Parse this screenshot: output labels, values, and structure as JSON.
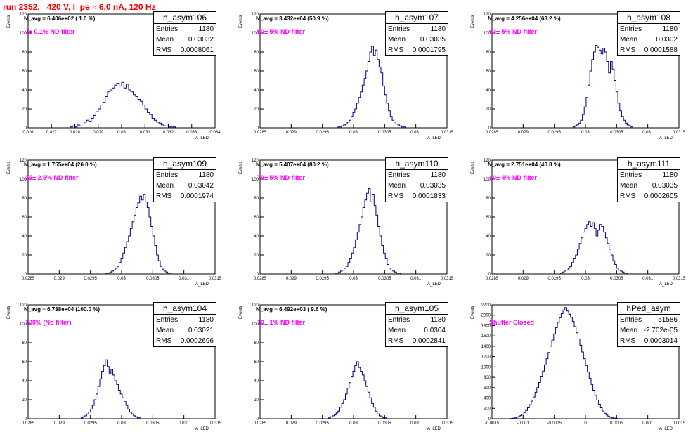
{
  "title": "run 2352,   420 V, I_pe ≈ 6.0 nA, 120 Hz",
  "chart_data": [
    {
      "type": "bar",
      "name": "h_asym106",
      "entries": "1180",
      "mean": "0.03032",
      "rms": "0.0008061",
      "navg_text": "N_avg = 6.406e+02 ( 1.0 %)",
      "filter_text": "1± 0.1% ND filter",
      "xlabel": "A_LED",
      "ylabel": "Events",
      "xlim": [
        0.026,
        0.034
      ],
      "ylim": [
        0,
        120
      ],
      "xticks": [
        0.026,
        0.027,
        0.028,
        0.029,
        0.03,
        0.031,
        0.032,
        0.033,
        0.034
      ],
      "xtick_labels": [
        "0.026",
        "0.027",
        "0.028",
        "0.029",
        "0.03",
        "0.031",
        "0.032",
        "0.033",
        "0.034"
      ],
      "yticks": [
        0,
        20,
        40,
        60,
        80,
        100,
        120
      ],
      "bin_low": 0.0278,
      "bin_width": 0.0001,
      "values": [
        1,
        2,
        1,
        3,
        2,
        4,
        6,
        8,
        7,
        10,
        13,
        17,
        20,
        24,
        27,
        33,
        38,
        40,
        42,
        45,
        47,
        44,
        48,
        42,
        46,
        40,
        38,
        35,
        33,
        30,
        28,
        24,
        20,
        16,
        14,
        10,
        8,
        6,
        5,
        3,
        2,
        2,
        1,
        1,
        1
      ]
    },
    {
      "type": "bar",
      "name": "h_asym107",
      "entries": "1180",
      "mean": "0.03035",
      "rms": "0.0001795",
      "navg_text": "N_avg = 3.432e+04 (50.9 %)",
      "filter_text": "50± 5% ND filter",
      "xlabel": "A_LED",
      "ylabel": "Events",
      "xlim": [
        0.0285,
        0.0315
      ],
      "ylim": [
        0,
        120
      ],
      "xticks": [
        0.0285,
        0.029,
        0.0295,
        0.03,
        0.0305,
        0.031,
        0.0315
      ],
      "xtick_labels": [
        "0.0285",
        "0.029",
        "0.0295",
        "0.03",
        "0.0305",
        "0.031",
        "0.0315"
      ],
      "yticks": [
        0,
        20,
        40,
        60,
        80,
        100,
        120
      ],
      "bin_low": 0.02975,
      "bin_width": 3e-05,
      "values": [
        1,
        1,
        2,
        3,
        4,
        6,
        8,
        12,
        16,
        20,
        26,
        32,
        38,
        45,
        52,
        60,
        70,
        80,
        86,
        76,
        82,
        72,
        64,
        58,
        44,
        35,
        26,
        18,
        12,
        8,
        6,
        4,
        3,
        2,
        1,
        1
      ]
    },
    {
      "type": "bar",
      "name": "h_asym108",
      "entries": "1180",
      "mean": "0.0302",
      "rms": "0.0001588",
      "navg_text": "N_avg = 4.256e+04 (63.2 %)",
      "filter_text": "63± 5% ND filter",
      "xlabel": "A_LED",
      "ylabel": "Events",
      "xlim": [
        0.0285,
        0.0315
      ],
      "ylim": [
        0,
        120
      ],
      "xticks": [
        0.0285,
        0.029,
        0.0295,
        0.03,
        0.0305,
        0.031,
        0.0315
      ],
      "xtick_labels": [
        "0.0285",
        "0.029",
        "0.0295",
        "0.03",
        "0.0305",
        "0.031",
        "0.0315"
      ],
      "yticks": [
        0,
        20,
        40,
        60,
        80,
        100,
        120
      ],
      "bin_low": 0.0298,
      "bin_width": 3e-05,
      "values": [
        1,
        2,
        3,
        5,
        8,
        14,
        22,
        32,
        45,
        60,
        72,
        80,
        87,
        85,
        82,
        78,
        84,
        80,
        70,
        58,
        70,
        62,
        50,
        38,
        26,
        18,
        12,
        8,
        5,
        3,
        2,
        1
      ]
    },
    {
      "type": "bar",
      "name": "h_asym109",
      "entries": "1180",
      "mean": "0.03042",
      "rms": "0.0001974",
      "navg_text": "N_avg = 1.755e+04 (26.0 %)",
      "filter_text": "25± 2.5% ND filter",
      "xlabel": "A_LED",
      "ylabel": "Events",
      "xlim": [
        0.0285,
        0.0315
      ],
      "ylim": [
        0,
        120
      ],
      "xticks": [
        0.0285,
        0.029,
        0.0295,
        0.03,
        0.0305,
        0.031,
        0.0315
      ],
      "xtick_labels": [
        "0.0285",
        "0.029",
        "0.0295",
        "0.03",
        "0.0305",
        "0.031",
        "0.0315"
      ],
      "yticks": [
        0,
        20,
        40,
        60,
        80,
        100,
        120
      ],
      "bin_low": 0.02975,
      "bin_width": 3e-05,
      "values": [
        1,
        1,
        2,
        3,
        4,
        6,
        8,
        12,
        16,
        22,
        28,
        34,
        40,
        48,
        55,
        62,
        70,
        75,
        82,
        78,
        84,
        76,
        70,
        60,
        50,
        40,
        30,
        20,
        14,
        8,
        5,
        3,
        2,
        1,
        1
      ]
    },
    {
      "type": "bar",
      "name": "h_asym110",
      "entries": "1180",
      "mean": "0.03035",
      "rms": "0.0001833",
      "navg_text": "N_avg = 5.407e+04 (80.2 %)",
      "filter_text": "79± 5% ND filter",
      "xlabel": "A_LED",
      "ylabel": "Events",
      "xlim": [
        0.0285,
        0.0315
      ],
      "ylim": [
        0,
        120
      ],
      "xticks": [
        0.0285,
        0.029,
        0.0295,
        0.03,
        0.0305,
        0.031,
        0.0315
      ],
      "xtick_labels": [
        "0.0285",
        "0.029",
        "0.0295",
        "0.03",
        "0.0305",
        "0.031",
        "0.0315"
      ],
      "yticks": [
        0,
        20,
        40,
        60,
        80,
        100,
        120
      ],
      "bin_low": 0.0297,
      "bin_width": 3e-05,
      "values": [
        1,
        1,
        2,
        3,
        4,
        6,
        8,
        12,
        16,
        22,
        28,
        36,
        44,
        52,
        60,
        70,
        78,
        85,
        90,
        76,
        84,
        72,
        62,
        50,
        40,
        30,
        22,
        16,
        10,
        6,
        4,
        3,
        2,
        1,
        1
      ]
    },
    {
      "type": "bar",
      "name": "h_asym111",
      "entries": "1180",
      "mean": "0.03035",
      "rms": "0.0002605",
      "navg_text": "N_avg = 2.751e+04 (40.8 %)",
      "filter_text": "40± 4% ND filter",
      "xlabel": "A_LED",
      "ylabel": "Events",
      "xlim": [
        0.0285,
        0.0315
      ],
      "ylim": [
        0,
        120
      ],
      "xticks": [
        0.0285,
        0.029,
        0.0295,
        0.03,
        0.0305,
        0.031,
        0.0315
      ],
      "xtick_labels": [
        "0.0285",
        "0.029",
        "0.0295",
        "0.03",
        "0.0305",
        "0.031",
        "0.0315"
      ],
      "yticks": [
        0,
        20,
        40,
        60,
        80,
        100,
        120
      ],
      "bin_low": 0.0296,
      "bin_width": 3e-05,
      "values": [
        1,
        2,
        3,
        4,
        6,
        8,
        12,
        16,
        20,
        26,
        32,
        38,
        44,
        48,
        52,
        55,
        50,
        54,
        48,
        40,
        46,
        52,
        50,
        44,
        38,
        32,
        26,
        20,
        14,
        10,
        6,
        4,
        3,
        2,
        1,
        1
      ]
    },
    {
      "type": "bar",
      "name": "h_asym104",
      "entries": "1180",
      "mean": "0.03021",
      "rms": "0.0002696",
      "navg_text": "N_avg = 6.738e+04 (100.0 %)",
      "filter_text": "100% (No filter)",
      "xlabel": "A_LED",
      "ylabel": "Events",
      "xlim": [
        0.0285,
        0.0315
      ],
      "ylim": [
        0,
        120
      ],
      "xticks": [
        0.0285,
        0.029,
        0.0295,
        0.03,
        0.0305,
        0.031,
        0.0315
      ],
      "xtick_labels": [
        "0.0285",
        "0.029",
        "0.0295",
        "0.03",
        "0.0305",
        "0.031",
        "0.0315"
      ],
      "yticks": [
        0,
        20,
        40,
        60,
        80,
        100,
        120
      ],
      "bin_low": 0.02935,
      "bin_width": 3e-05,
      "values": [
        1,
        2,
        3,
        5,
        7,
        10,
        14,
        20,
        26,
        34,
        42,
        50,
        56,
        62,
        55,
        48,
        52,
        46,
        40,
        36,
        30,
        26,
        22,
        18,
        14,
        10,
        7,
        5,
        3,
        2,
        1,
        1
      ]
    },
    {
      "type": "bar",
      "name": "h_asym105",
      "entries": "1180",
      "mean": "0.0304",
      "rms": "0.0002841",
      "navg_text": "N_avg = 6.492e+03 ( 9.6 %)",
      "filter_text": "10± 1% ND filter",
      "xlabel": "A_LED",
      "ylabel": "Events",
      "xlim": [
        0.0285,
        0.0315
      ],
      "ylim": [
        0,
        120
      ],
      "xticks": [
        0.0285,
        0.029,
        0.0295,
        0.03,
        0.0305,
        0.031,
        0.0315
      ],
      "xtick_labels": [
        "0.0285",
        "0.029",
        "0.0295",
        "0.03",
        "0.0305",
        "0.031",
        "0.0315"
      ],
      "yticks": [
        0,
        20,
        40,
        60,
        80,
        100,
        120
      ],
      "bin_low": 0.0296,
      "bin_width": 3e-05,
      "values": [
        1,
        2,
        3,
        4,
        6,
        8,
        12,
        16,
        20,
        26,
        32,
        38,
        44,
        50,
        56,
        60,
        54,
        50,
        46,
        40,
        34,
        28,
        22,
        16,
        12,
        8,
        5,
        3,
        2,
        1,
        1
      ]
    },
    {
      "type": "bar",
      "name": "hPed_asym",
      "entries": "51586",
      "mean": "-2.702e-05",
      "rms": "0.0003014",
      "navg_text": "",
      "filter_text": "Shutter Closed",
      "xlabel": "A_LED",
      "ylabel": "Events",
      "xlim": [
        -0.0015,
        0.0015
      ],
      "ylim": [
        0,
        2200
      ],
      "xticks": [
        -0.0015,
        -0.001,
        -0.0005,
        0,
        0.0005,
        0.001,
        0.0015
      ],
      "xtick_labels": [
        "-0.0015",
        "-0.001",
        "-0.0005",
        "0",
        "0.0005",
        "0.001",
        "0.0015"
      ],
      "yticks": [
        0,
        200,
        400,
        600,
        800,
        1000,
        1200,
        1400,
        1600,
        1800,
        2000,
        2200
      ],
      "bin_low": -0.0012,
      "bin_width": 3e-05,
      "values": [
        5,
        10,
        18,
        28,
        40,
        60,
        85,
        120,
        160,
        210,
        270,
        340,
        420,
        510,
        600,
        700,
        810,
        920,
        1040,
        1160,
        1280,
        1400,
        1520,
        1640,
        1760,
        1860,
        1950,
        2030,
        2100,
        2150,
        2080,
        2020,
        1960,
        1880,
        1780,
        1660,
        1540,
        1420,
        1290,
        1160,
        1030,
        900,
        780,
        660,
        550,
        450,
        360,
        280,
        210,
        150,
        105,
        70,
        45,
        28,
        16,
        9,
        5,
        2,
        1
      ]
    }
  ],
  "stats_labels": {
    "entries": "Entries",
    "mean": "Mean",
    "rms": "RMS"
  }
}
